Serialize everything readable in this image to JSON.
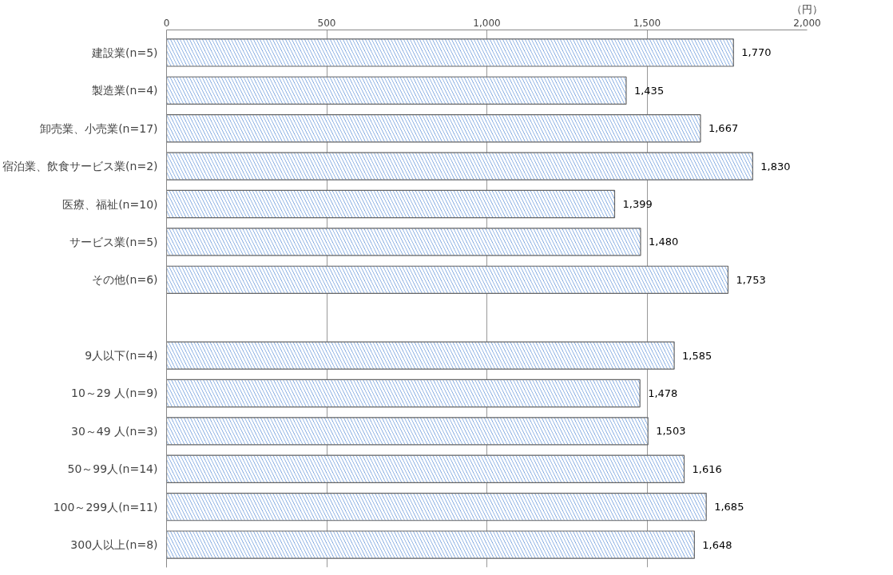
{
  "chart_data": {
    "type": "bar",
    "orientation": "horizontal",
    "categories": [
      "建設業(n=5)",
      "製造業(n=4)",
      "卸売業、小売業(n=17)",
      "宿泊業、飲食サービス業(n=2)",
      "医療、福祉(n=10)",
      "サービス業(n=5)",
      "その他(n=6)",
      null,
      "9人以下(n=4)",
      "10～29 人(n=9)",
      "30～49 人(n=3)",
      "50～99人(n=14)",
      "100～299人(n=11)",
      "300人以上(n=8)"
    ],
    "values": [
      1770,
      1435,
      1667,
      1830,
      1399,
      1480,
      1753,
      null,
      1585,
      1478,
      1503,
      1616,
      1685,
      1648
    ],
    "color": "#5b8fd8",
    "xlim": [
      0,
      2000
    ],
    "xticks": [
      0,
      500,
      {
        "value": 1000,
        "label": "1,000"
      },
      {
        "value": 1500,
        "label": "1,500"
      },
      {
        "value": 2000,
        "label": "2,000"
      }
    ],
    "xlabel": "（円）",
    "grid": "x",
    "value_labels": [
      "1,770",
      "1,435",
      "1,667",
      "1,830",
      "1,399",
      "1,480",
      "1,753",
      null,
      "1,585",
      "1,478",
      "1,503",
      "1,616",
      "1,685",
      "1,648"
    ]
  }
}
